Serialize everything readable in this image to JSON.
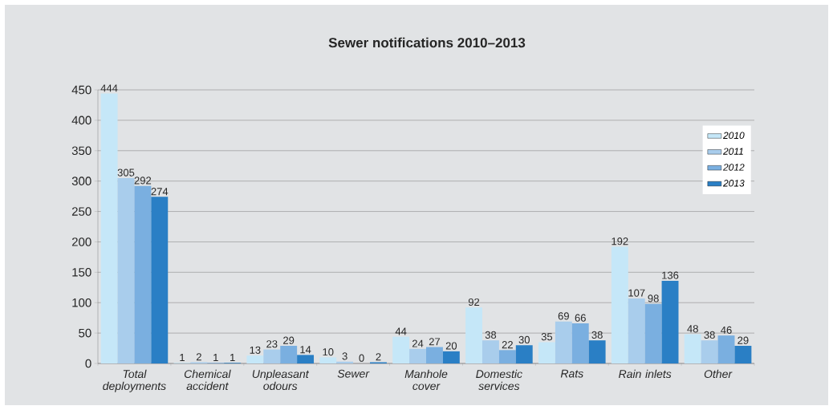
{
  "chart_data": {
    "type": "bar",
    "title": "Sewer notifications 2010–2013",
    "categories": [
      "Total deployments",
      "Chemical accident",
      "Unpleasant odours",
      "Sewer",
      "Manhole cover",
      "Domestic services",
      "Rats",
      "Rain inlets",
      "Other"
    ],
    "series": [
      {
        "name": "2010",
        "color": "#c5e7f8",
        "values": [
          444,
          1,
          13,
          10,
          44,
          92,
          35,
          192,
          48
        ]
      },
      {
        "name": "2011",
        "color": "#a9cdec",
        "values": [
          305,
          2,
          23,
          3,
          24,
          38,
          69,
          107,
          38
        ]
      },
      {
        "name": "2012",
        "color": "#7aafe0",
        "values": [
          292,
          1,
          29,
          0,
          27,
          22,
          66,
          98,
          46
        ]
      },
      {
        "name": "2013",
        "color": "#2a7fc5",
        "values": [
          274,
          1,
          14,
          2,
          20,
          30,
          38,
          136,
          29
        ]
      }
    ],
    "ylim": [
      0,
      450
    ],
    "yticks": [
      0,
      50,
      100,
      150,
      200,
      250,
      300,
      350,
      400,
      450
    ],
    "grid": "y",
    "legend": "right",
    "data_labels": true
  }
}
